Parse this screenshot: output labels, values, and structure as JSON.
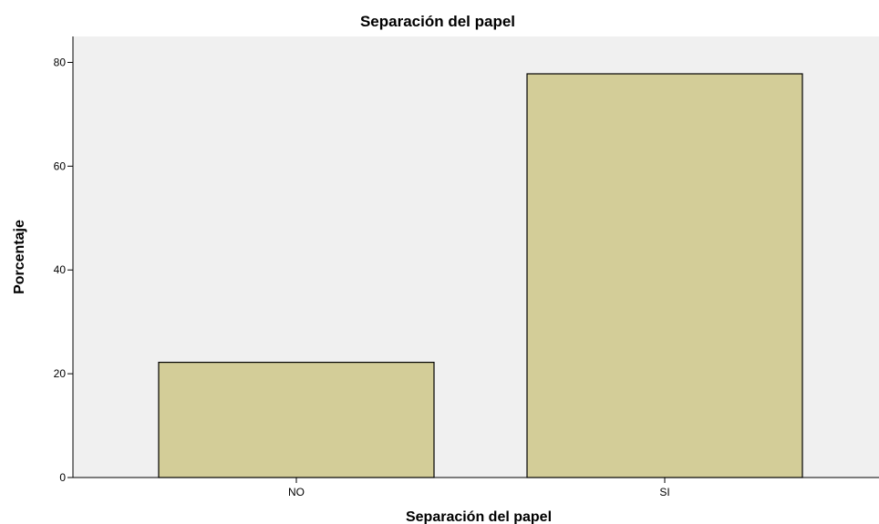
{
  "chart_data": {
    "type": "bar",
    "title": "Separación del papel",
    "xlabel": "Separación del papel",
    "ylabel": "Porcentaje",
    "categories": [
      "NO",
      "SI"
    ],
    "values": [
      22.2,
      77.8
    ],
    "ylim": [
      0,
      85
    ],
    "yticks": [
      0,
      20,
      40,
      60,
      80
    ],
    "grid": false,
    "bar_color": "#d3cd98",
    "bar_edge_color": "#000000",
    "plot_background": "#f0f0f0"
  }
}
